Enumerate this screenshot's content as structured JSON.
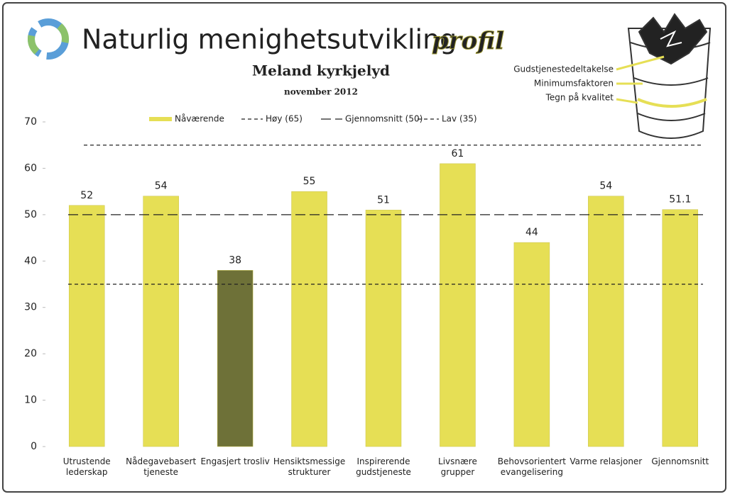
{
  "chart_data": {
    "type": "bar",
    "title": "Naturlig menighetsutvikling",
    "title_accent": "profil",
    "subtitle": "Meland kyrkjelyd",
    "date": "november 2012",
    "categories": [
      "Utrustende\nlederskap",
      "Nådegavebasert\ntjeneste",
      "Engasjert trosliv",
      "Hensiktsmessige\nstrukturer",
      "Inspirerende\ngudstjeneste",
      "Livsnære\ngrupper",
      "Behovsorientert\nevangelisering",
      "Varme relasjoner",
      "Gjennomsnitt"
    ],
    "series": [
      {
        "name": "Nåværende",
        "color": "#e6df55",
        "values": [
          52,
          54,
          38,
          55,
          51,
          61,
          44,
          54,
          51.1
        ],
        "colors": [
          "#e6df55",
          "#e6df55",
          "#6e7138",
          "#e6df55",
          "#e6df55",
          "#e6df55",
          "#e6df55",
          "#e6df55",
          "#e6df55"
        ]
      }
    ],
    "reference_lines": [
      {
        "name": "Høy (65)",
        "value": 65,
        "dash": "short"
      },
      {
        "name": "Gjennomsnitt (50)",
        "value": 50,
        "dash": "long"
      },
      {
        "name": "Lav (35)",
        "value": 35,
        "dash": "short"
      }
    ],
    "ylim": [
      0,
      70
    ],
    "yticks": [
      0,
      10,
      20,
      30,
      40,
      50,
      60,
      70
    ],
    "grid": false,
    "annotations": [
      "Gudstjenestedeltakelse",
      "Minimumsfaktoren",
      "Tegn på kvalitet"
    ]
  }
}
